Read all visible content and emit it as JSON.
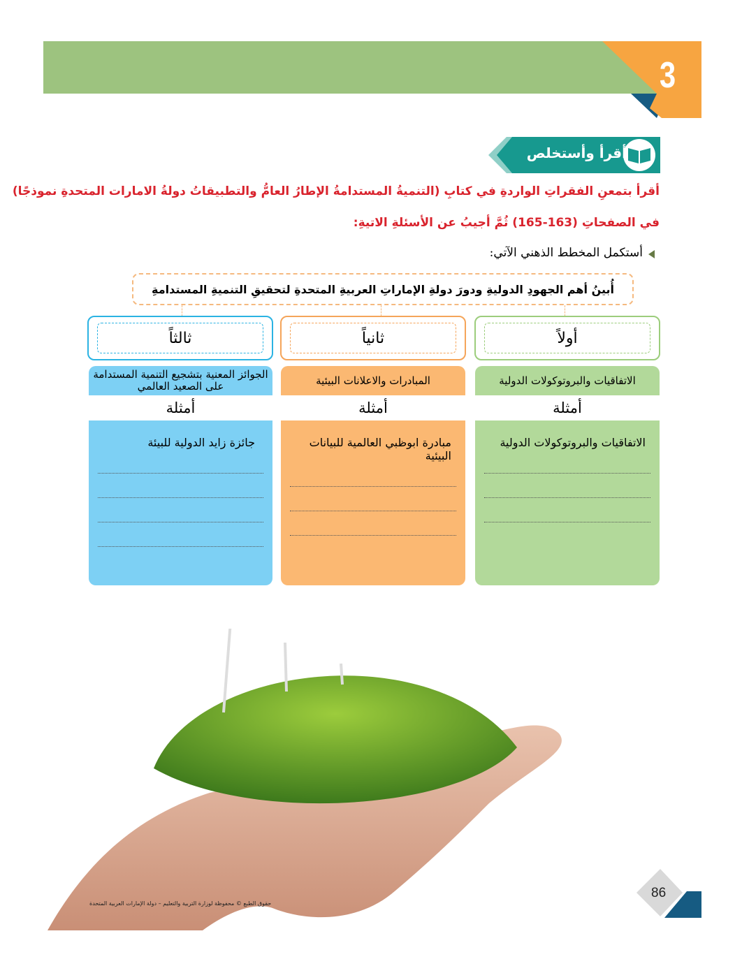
{
  "header": {
    "unit_number": "3",
    "colors": {
      "green": "#9dc37f",
      "orange": "#f7a541",
      "blue": "#165b82"
    }
  },
  "section": {
    "title": "أقرأ وأستخلص",
    "icon": "open-book-icon",
    "color": "#17998f"
  },
  "instructions": {
    "line1": "أقرأ بتمعنِ الفقراتِ الواردةِ في كتابِ (التنميةُ المستدامةُ الإطارُ العامُّ والتطبيقاتُ دولةُ الامارات المتحدةِ نموذجًا)",
    "line2": "في الصفحاتِ (163-165) ثُمَّ أجيبُ عن الأسئلةِ الاتيةِ:",
    "task": "أستكمل المخطط الذهني الآتي:"
  },
  "mindmap": {
    "question": "أُبينُ أهم الجهودِ الدوليةِ ودورَ دولةِ الإماراتِ العربيةِ المتحدةِ لتحقيقِ التنميةِ المستدامةِ",
    "columns": [
      {
        "label": "أولاً",
        "heading": "الاتفاقيات والبروتوكولات الدولية",
        "examples_label": "أمثلة",
        "answer": "الاتفاقيات والبروتوكولات الدولية",
        "color": "#b2d99a",
        "border": "#9ccd7c"
      },
      {
        "label": "ثانياً",
        "heading": "المبادرات والاعلانات البيئية",
        "examples_label": "أمثلة",
        "answer": "مبادرة ابوظبي العالمية للبيانات البيئية",
        "color": "#fbb872",
        "border": "#f5a55a"
      },
      {
        "label": "ثالثاً",
        "heading": "الجوائز المعنية بتشجيع التنمية المستدامة على الصعيد العالمي",
        "examples_label": "أمثلة",
        "answer": "جائزة زايد الدولية للبيئة",
        "color": "#7dd0f4",
        "border": "#2bb3e3"
      }
    ]
  },
  "footer": {
    "copyright": "حقوق الطبع © محفوظة لوزارة التربية والتعليم – دولة الإمارات العربية المتحدة",
    "page_number": "86"
  }
}
